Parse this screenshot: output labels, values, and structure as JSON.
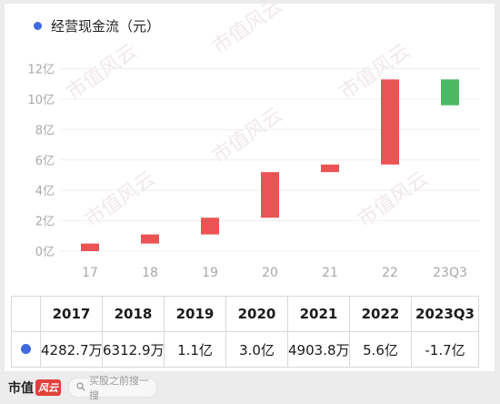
{
  "legend": {
    "label": "经营现金流（元）",
    "color": "#4169e1"
  },
  "watermark_text": "市值风云",
  "chart_data": {
    "type": "bar",
    "subtype": "waterfall",
    "categories": [
      "17",
      "18",
      "19",
      "20",
      "21",
      "22",
      "23Q3"
    ],
    "y_ticks": [
      "0亿",
      "2亿",
      "4亿",
      "6亿",
      "8亿",
      "10亿",
      "12亿"
    ],
    "ylim": [
      -1,
      12.7
    ],
    "unit": "亿",
    "changes": [
      0.428,
      0.631,
      1.1,
      3.0,
      0.49,
      5.6,
      -1.7
    ],
    "bars": [
      {
        "start": 0.0,
        "end": 0.5
      },
      {
        "start": 0.5,
        "end": 1.1
      },
      {
        "start": 1.1,
        "end": 2.2
      },
      {
        "start": 2.2,
        "end": 5.2
      },
      {
        "start": 5.2,
        "end": 5.7
      },
      {
        "start": 5.7,
        "end": 11.3
      },
      {
        "start": 11.3,
        "end": 9.6
      }
    ],
    "colors": {
      "increase": "#ea5455",
      "decrease": "#4cb863"
    },
    "grid": true
  },
  "table": {
    "years": [
      "2017",
      "2018",
      "2019",
      "2020",
      "2021",
      "2022",
      "2023Q3"
    ],
    "values": [
      "4282.7万",
      "6312.9万",
      "1.1亿",
      "3.0亿",
      "4903.8万",
      "5.6亿",
      "-1.7亿"
    ]
  },
  "footer": {
    "logo_text": "市值",
    "logo_badge": "风云",
    "search_icon": "search-icon",
    "search_placeholder": "买股之前搜一搜"
  }
}
